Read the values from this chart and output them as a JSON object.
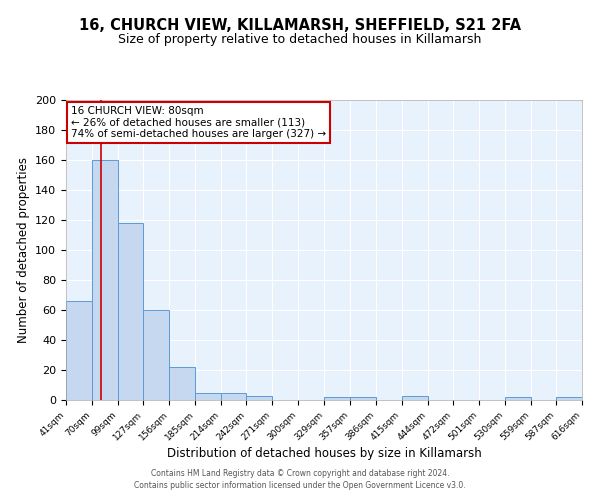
{
  "title": "16, CHURCH VIEW, KILLAMARSH, SHEFFIELD, S21 2FA",
  "subtitle": "Size of property relative to detached houses in Killamarsh",
  "xlabel": "Distribution of detached houses by size in Killamarsh",
  "ylabel": "Number of detached properties",
  "bin_edges": [
    41,
    70,
    99,
    127,
    156,
    185,
    214,
    242,
    271,
    300,
    329,
    357,
    386,
    415,
    444,
    472,
    501,
    530,
    559,
    587,
    616
  ],
  "bin_counts": [
    66,
    160,
    118,
    60,
    22,
    5,
    5,
    3,
    0,
    0,
    2,
    2,
    0,
    3,
    0,
    0,
    0,
    2,
    0,
    2
  ],
  "bar_color": "#c5d8f0",
  "bar_edge_color": "#5b9bd5",
  "red_line_x": 80,
  "ylim": [
    0,
    200
  ],
  "yticks": [
    0,
    20,
    40,
    60,
    80,
    100,
    120,
    140,
    160,
    180,
    200
  ],
  "annotation_title": "16 CHURCH VIEW: 80sqm",
  "annotation_line1": "← 26% of detached houses are smaller (113)",
  "annotation_line2": "74% of semi-detached houses are larger (327) →",
  "annotation_box_color": "white",
  "annotation_box_edge_color": "#cc0000",
  "footer_line1": "Contains HM Land Registry data © Crown copyright and database right 2024.",
  "footer_line2": "Contains public sector information licensed under the Open Government Licence v3.0.",
  "background_color": "#e8f2fc",
  "grid_color": "white",
  "title_fontsize": 10.5,
  "subtitle_fontsize": 9,
  "tick_labels": [
    "41sqm",
    "70sqm",
    "99sqm",
    "127sqm",
    "156sqm",
    "185sqm",
    "214sqm",
    "242sqm",
    "271sqm",
    "300sqm",
    "329sqm",
    "357sqm",
    "386sqm",
    "415sqm",
    "444sqm",
    "472sqm",
    "501sqm",
    "530sqm",
    "559sqm",
    "587sqm",
    "616sqm"
  ]
}
